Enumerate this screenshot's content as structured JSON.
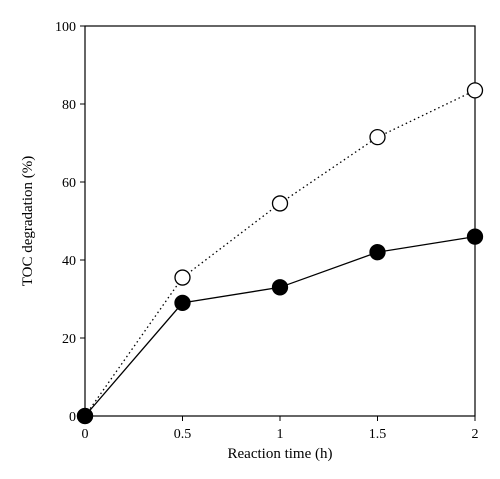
{
  "chart_data": {
    "type": "line",
    "xlabel": "Reaction time (h)",
    "ylabel": "TOC degradation (%)",
    "xlim": [
      0,
      2
    ],
    "ylim": [
      0,
      100
    ],
    "x_ticks": [
      "0",
      "0.5",
      "1",
      "1.5",
      "2"
    ],
    "y_ticks": [
      "0",
      "20",
      "40",
      "60",
      "80",
      "100"
    ],
    "grid": false,
    "series": [
      {
        "marker": "open-circle",
        "line_style": "dotted",
        "color": "#000000",
        "x": [
          0,
          0.5,
          1,
          1.5,
          2
        ],
        "y": [
          0,
          35.5,
          54.5,
          71.5,
          83.5
        ]
      },
      {
        "marker": "filled-circle",
        "line_style": "solid",
        "color": "#000000",
        "x": [
          0,
          0.5,
          1,
          1.5,
          2
        ],
        "y": [
          0,
          29,
          33,
          42,
          46
        ]
      }
    ]
  }
}
